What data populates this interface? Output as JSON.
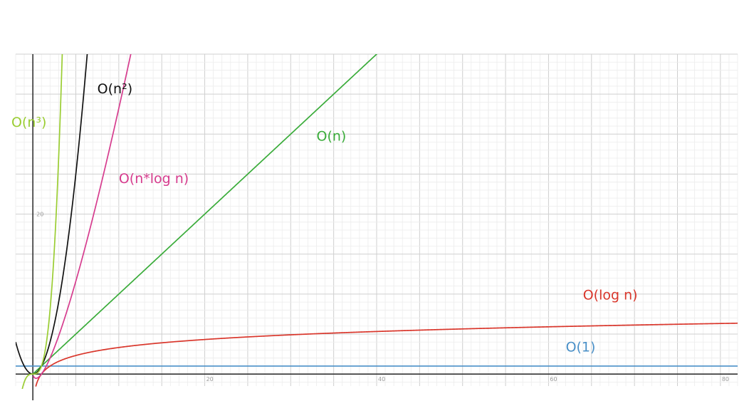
{
  "chart_data": {
    "type": "line",
    "title": "",
    "xlabel": "",
    "ylabel": "",
    "xlim": [
      -2,
      82
    ],
    "ylim": [
      -1.5,
      40
    ],
    "grid": true,
    "x_ticks": [
      {
        "value": 20,
        "label": "20"
      },
      {
        "value": 40,
        "label": "40"
      },
      {
        "value": 60,
        "label": "60"
      },
      {
        "value": 80,
        "label": "80"
      }
    ],
    "y_ticks": [
      {
        "value": 20,
        "label": "20"
      }
    ],
    "series": [
      {
        "name": "O(1)",
        "formula": "1",
        "color": "#4a90c8",
        "label_at": [
          62,
          2.8
        ]
      },
      {
        "name": "O(log n)",
        "formula": "log2(n)",
        "color": "#d9362b",
        "label_at": [
          64,
          9.3
        ]
      },
      {
        "name": "O(n)",
        "formula": "n",
        "color": "#3aac3a",
        "label_at": [
          33,
          29.2
        ]
      },
      {
        "name": "O(n*log n)",
        "formula": "n*log2(n)",
        "color": "#d63c8e",
        "label_at": [
          10,
          23.9
        ]
      },
      {
        "name": "O(n²)",
        "formula": "n^2",
        "color": "#111111",
        "label_at": [
          7.5,
          35.1
        ]
      },
      {
        "name": "O(n³)",
        "formula": "n^3",
        "color": "#9acd32",
        "label_at": [
          -2.5,
          30.9
        ]
      }
    ]
  }
}
